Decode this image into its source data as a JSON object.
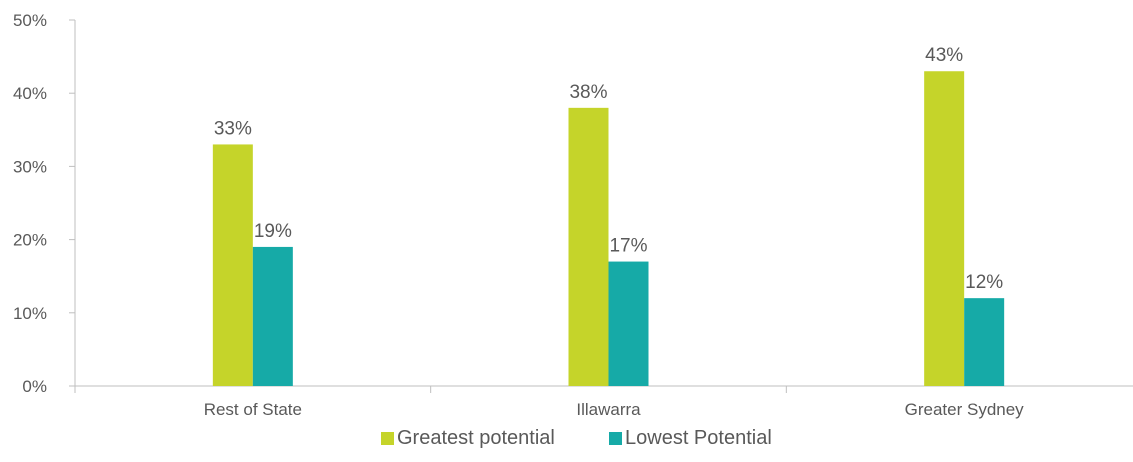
{
  "chart_data": {
    "type": "bar",
    "categories": [
      "Rest of State",
      "Illawarra",
      "Greater Sydney"
    ],
    "series": [
      {
        "name": "Greatest potential",
        "values": [
          33,
          38,
          43
        ],
        "labels": [
          "33%",
          "38%",
          "43%"
        ],
        "color": "#c5d42a"
      },
      {
        "name": "Lowest Potential",
        "values": [
          19,
          17,
          12
        ],
        "labels": [
          "19%",
          "17%",
          "12%"
        ],
        "color": "#16aaa7"
      }
    ],
    "y_ticks": [
      0,
      10,
      20,
      30,
      40,
      50
    ],
    "y_tick_labels": [
      "0%",
      "10%",
      "20%",
      "30%",
      "40%",
      "50%"
    ],
    "ylim": [
      0,
      50
    ],
    "title": "",
    "xlabel": "",
    "ylabel": "",
    "grid": false,
    "legend_position": "bottom"
  }
}
